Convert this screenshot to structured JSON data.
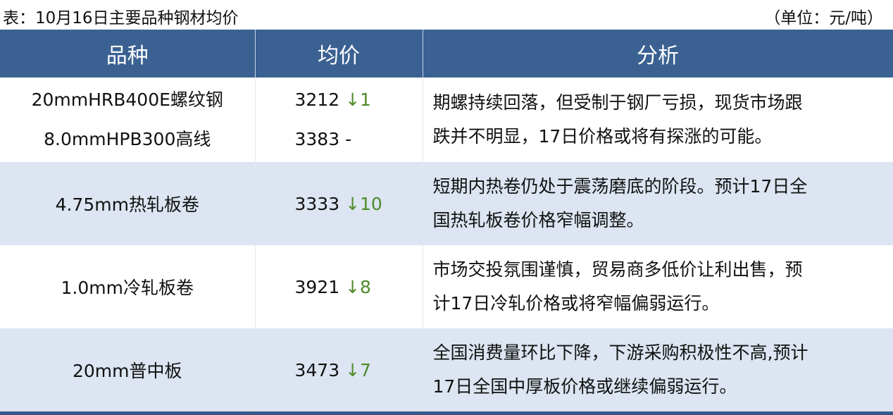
{
  "caption": {
    "title": "表：10月16日主要品种钢材均价",
    "unit": "（单位：元/吨）"
  },
  "headers": [
    "品种",
    "均价",
    "分析"
  ],
  "colors": {
    "header_bg": "#3a6192",
    "alt_row": "#dce5f1",
    "down": "#4f8a2a"
  },
  "rows": [
    {
      "items": [
        {
          "name": "20mmHRB400E螺纹钢",
          "price": "3212",
          "change": "↓1"
        },
        {
          "name": "8.0mmHPB300高线",
          "price": "3383",
          "change": "-"
        }
      ],
      "analysis": [
        "期螺持续回落，但受制于钢厂亏损，现货市场跟",
        "跌并不明显，17日价格或将有探涨的可能。"
      ]
    },
    {
      "items": [
        {
          "name": "4.75mm热轧板卷",
          "price": "3333",
          "change": "↓10"
        }
      ],
      "analysis": [
        "短期内热卷仍处于震荡磨底的阶段。预计17日全",
        "国热轧板卷价格窄幅调整。"
      ]
    },
    {
      "items": [
        {
          "name": "1.0mm冷轧板卷",
          "price": "3921",
          "change": "↓8"
        }
      ],
      "analysis": [
        "市场交投氛围谨慎，贸易商多低价让利出售，预",
        "计17日冷轧价格或将窄幅偏弱运行。"
      ]
    },
    {
      "items": [
        {
          "name": "20mm普中板",
          "price": "3473",
          "change": "↓7"
        }
      ],
      "analysis": [
        "全国消费量环比下降，下游采购积极性不高,预计",
        "17日全国中厚板价格或继续偏弱运行。"
      ]
    }
  ]
}
